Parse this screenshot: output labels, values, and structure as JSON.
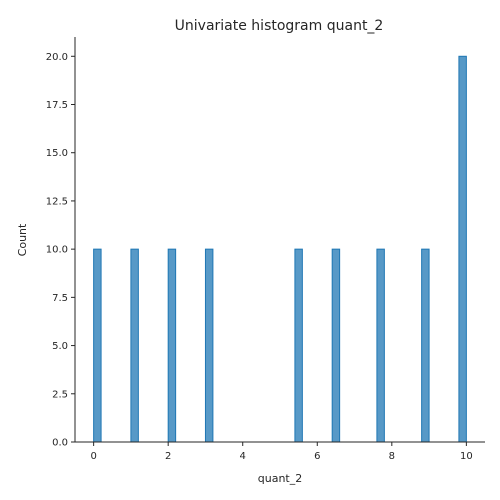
{
  "chart_data": {
    "type": "bar",
    "title": "Univariate histogram quant_2",
    "xlabel": "quant_2",
    "ylabel": "Count",
    "xlim": [
      -0.5,
      10.5
    ],
    "ylim": [
      0,
      21
    ],
    "xticks": [
      0,
      2,
      4,
      6,
      8,
      10
    ],
    "xtick_labels": [
      "0",
      "2",
      "4",
      "6",
      "8",
      "10"
    ],
    "yticks": [
      0,
      2.5,
      5,
      7.5,
      10,
      12.5,
      15,
      17.5,
      20
    ],
    "ytick_labels": [
      "0.0",
      "2.5",
      "5.0",
      "7.5",
      "10.0",
      "12.5",
      "15.0",
      "17.5",
      "20.0"
    ],
    "bin_width": 0.2,
    "bars": [
      {
        "x": 0.1,
        "count": 10
      },
      {
        "x": 1.1,
        "count": 10
      },
      {
        "x": 2.1,
        "count": 10
      },
      {
        "x": 3.1,
        "count": 10
      },
      {
        "x": 5.5,
        "count": 10
      },
      {
        "x": 6.5,
        "count": 10
      },
      {
        "x": 7.7,
        "count": 10
      },
      {
        "x": 8.9,
        "count": 10
      },
      {
        "x": 9.9,
        "count": 20
      }
    ],
    "bar_fill": "#1f77b4",
    "bar_fill_opacity": 0.75,
    "bar_stroke": "#1f77b4",
    "grid": false
  }
}
